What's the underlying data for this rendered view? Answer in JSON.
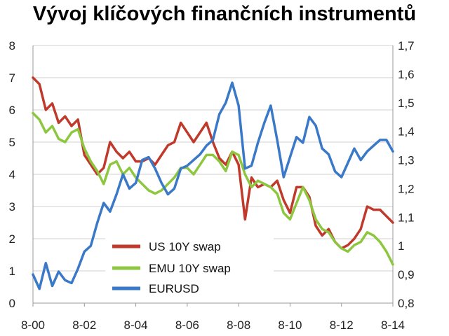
{
  "chart_data": {
    "type": "line",
    "title": "Vývoj klíčových finančních instrumentů",
    "xlabel": "",
    "ylabel": "",
    "x_ticks": [
      "8-00",
      "8-02",
      "8-04",
      "8-06",
      "8-08",
      "8-10",
      "8-12",
      "8-14"
    ],
    "xlim": [
      "2000-08",
      "2014-08"
    ],
    "ylim_left": [
      0,
      8
    ],
    "ylim_right": [
      0.8,
      1.7
    ],
    "y_ticks_left": [
      "0",
      "1",
      "2",
      "3",
      "4",
      "5",
      "6",
      "7",
      "8"
    ],
    "y_ticks_right": [
      "0,8",
      "0,9",
      "1",
      "1,1",
      "1,2",
      "1,3",
      "1,4",
      "1,5",
      "1,6",
      "1,7"
    ],
    "grid": "horizontal",
    "legend_position": "bottom-center",
    "series": [
      {
        "name": "US 10Y swap",
        "axis": "left",
        "color": "#c0392b",
        "x": [
          "2000-08",
          "2000-11",
          "2001-02",
          "2001-05",
          "2001-08",
          "2001-11",
          "2002-02",
          "2002-05",
          "2002-08",
          "2002-11",
          "2003-02",
          "2003-05",
          "2003-08",
          "2003-11",
          "2004-02",
          "2004-05",
          "2004-08",
          "2004-11",
          "2005-02",
          "2005-05",
          "2005-08",
          "2005-11",
          "2006-02",
          "2006-05",
          "2006-08",
          "2006-11",
          "2007-02",
          "2007-05",
          "2007-08",
          "2007-11",
          "2008-02",
          "2008-05",
          "2008-08",
          "2008-11",
          "2009-02",
          "2009-05",
          "2009-08",
          "2009-11",
          "2010-02",
          "2010-05",
          "2010-08",
          "2010-11",
          "2011-02",
          "2011-05",
          "2011-08",
          "2011-11",
          "2012-02",
          "2012-05",
          "2012-08",
          "2012-11",
          "2013-02",
          "2013-05",
          "2013-08",
          "2013-11",
          "2014-02",
          "2014-05",
          "2014-08"
        ],
        "values": [
          7.0,
          6.8,
          6.0,
          6.2,
          5.6,
          5.8,
          5.5,
          5.7,
          4.6,
          4.3,
          4.0,
          4.2,
          5.0,
          4.7,
          4.5,
          4.7,
          4.4,
          4.4,
          4.5,
          4.3,
          4.6,
          4.9,
          5.0,
          5.6,
          5.3,
          5.0,
          5.3,
          5.6,
          5.0,
          4.5,
          4.3,
          4.7,
          4.3,
          2.6,
          3.9,
          3.6,
          3.7,
          3.6,
          3.8,
          3.2,
          2.8,
          3.6,
          3.6,
          3.3,
          2.4,
          2.1,
          2.3,
          1.9,
          1.7,
          1.8,
          2.0,
          2.3,
          3.0,
          2.9,
          2.9,
          2.7,
          2.5
        ]
      },
      {
        "name": "EMU 10Y swap",
        "axis": "left",
        "color": "#8dc63f",
        "x": [
          "2000-08",
          "2000-11",
          "2001-02",
          "2001-05",
          "2001-08",
          "2001-11",
          "2002-02",
          "2002-05",
          "2002-08",
          "2002-11",
          "2003-02",
          "2003-05",
          "2003-08",
          "2003-11",
          "2004-02",
          "2004-05",
          "2004-08",
          "2004-11",
          "2005-02",
          "2005-05",
          "2005-08",
          "2005-11",
          "2006-02",
          "2006-05",
          "2006-08",
          "2006-11",
          "2007-02",
          "2007-05",
          "2007-08",
          "2007-11",
          "2008-02",
          "2008-05",
          "2008-08",
          "2008-11",
          "2009-02",
          "2009-05",
          "2009-08",
          "2009-11",
          "2010-02",
          "2010-05",
          "2010-08",
          "2010-11",
          "2011-02",
          "2011-05",
          "2011-08",
          "2011-11",
          "2012-02",
          "2012-05",
          "2012-08",
          "2012-11",
          "2013-02",
          "2013-05",
          "2013-08",
          "2013-11",
          "2014-02",
          "2014-05",
          "2014-08"
        ],
        "values": [
          5.9,
          5.7,
          5.3,
          5.5,
          5.1,
          5.0,
          5.3,
          5.4,
          4.8,
          4.4,
          4.1,
          3.7,
          4.3,
          4.4,
          4.0,
          4.2,
          3.9,
          3.7,
          3.5,
          3.4,
          3.5,
          3.7,
          3.9,
          4.2,
          4.2,
          4.0,
          4.3,
          4.6,
          4.6,
          4.4,
          4.1,
          4.7,
          4.6,
          4.0,
          3.6,
          3.8,
          3.7,
          3.6,
          3.4,
          2.8,
          2.6,
          3.1,
          3.6,
          3.2,
          2.6,
          2.3,
          2.2,
          1.9,
          1.7,
          1.6,
          1.8,
          1.9,
          2.2,
          2.1,
          1.9,
          1.6,
          1.2
        ]
      },
      {
        "name": "EURUSD",
        "axis": "right",
        "color": "#3a78c8",
        "x": [
          "2000-08",
          "2000-11",
          "2001-02",
          "2001-05",
          "2001-08",
          "2001-11",
          "2002-02",
          "2002-05",
          "2002-08",
          "2002-11",
          "2003-02",
          "2003-05",
          "2003-08",
          "2003-11",
          "2004-02",
          "2004-05",
          "2004-08",
          "2004-11",
          "2005-02",
          "2005-05",
          "2005-08",
          "2005-11",
          "2006-02",
          "2006-05",
          "2006-08",
          "2006-11",
          "2007-02",
          "2007-05",
          "2007-08",
          "2007-11",
          "2008-02",
          "2008-05",
          "2008-08",
          "2008-11",
          "2009-02",
          "2009-05",
          "2009-08",
          "2009-11",
          "2010-02",
          "2010-05",
          "2010-08",
          "2010-11",
          "2011-02",
          "2011-05",
          "2011-08",
          "2011-11",
          "2012-02",
          "2012-05",
          "2012-08",
          "2012-11",
          "2013-02",
          "2013-05",
          "2013-08",
          "2013-11",
          "2014-02",
          "2014-05",
          "2014-08"
        ],
        "values": [
          0.9,
          0.85,
          0.94,
          0.86,
          0.91,
          0.88,
          0.87,
          0.92,
          0.98,
          1.0,
          1.08,
          1.15,
          1.12,
          1.18,
          1.25,
          1.2,
          1.22,
          1.3,
          1.31,
          1.27,
          1.22,
          1.18,
          1.2,
          1.27,
          1.28,
          1.3,
          1.32,
          1.35,
          1.37,
          1.46,
          1.5,
          1.57,
          1.49,
          1.27,
          1.28,
          1.36,
          1.43,
          1.49,
          1.37,
          1.24,
          1.31,
          1.38,
          1.36,
          1.45,
          1.42,
          1.34,
          1.32,
          1.26,
          1.24,
          1.29,
          1.34,
          1.3,
          1.33,
          1.35,
          1.37,
          1.37,
          1.33
        ]
      }
    ]
  }
}
